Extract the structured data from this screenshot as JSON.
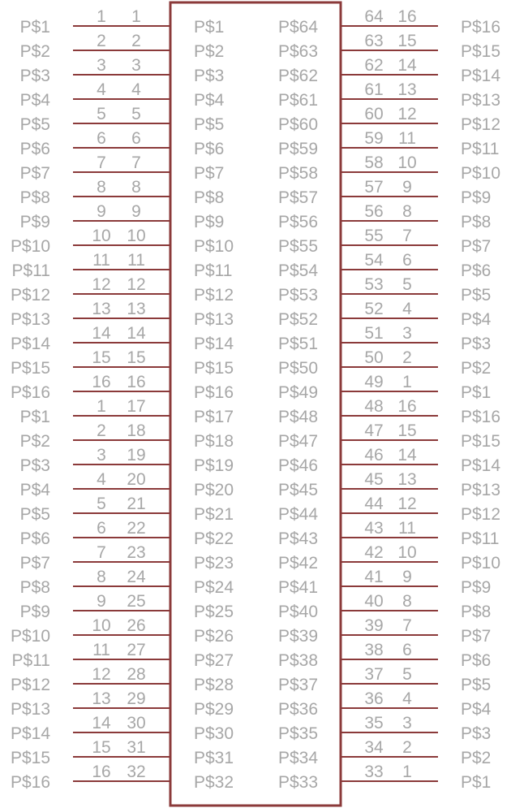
{
  "component": {
    "stroke_color": "#8b3a3a",
    "text_color": "#a7a7a7",
    "background": "#ffffff"
  },
  "left_pins": [
    {
      "signal": "P$1",
      "num_a": "1",
      "num_b": "1",
      "inner": "P$1"
    },
    {
      "signal": "P$2",
      "num_a": "2",
      "num_b": "2",
      "inner": "P$2"
    },
    {
      "signal": "P$3",
      "num_a": "3",
      "num_b": "3",
      "inner": "P$3"
    },
    {
      "signal": "P$4",
      "num_a": "4",
      "num_b": "4",
      "inner": "P$4"
    },
    {
      "signal": "P$5",
      "num_a": "5",
      "num_b": "5",
      "inner": "P$5"
    },
    {
      "signal": "P$6",
      "num_a": "6",
      "num_b": "6",
      "inner": "P$6"
    },
    {
      "signal": "P$7",
      "num_a": "7",
      "num_b": "7",
      "inner": "P$7"
    },
    {
      "signal": "P$8",
      "num_a": "8",
      "num_b": "8",
      "inner": "P$8"
    },
    {
      "signal": "P$9",
      "num_a": "9",
      "num_b": "9",
      "inner": "P$9"
    },
    {
      "signal": "P$10",
      "num_a": "10",
      "num_b": "10",
      "inner": "P$10"
    },
    {
      "signal": "P$11",
      "num_a": "11",
      "num_b": "11",
      "inner": "P$11"
    },
    {
      "signal": "P$12",
      "num_a": "12",
      "num_b": "12",
      "inner": "P$12"
    },
    {
      "signal": "P$13",
      "num_a": "13",
      "num_b": "13",
      "inner": "P$13"
    },
    {
      "signal": "P$14",
      "num_a": "14",
      "num_b": "14",
      "inner": "P$14"
    },
    {
      "signal": "P$15",
      "num_a": "15",
      "num_b": "15",
      "inner": "P$15"
    },
    {
      "signal": "P$16",
      "num_a": "16",
      "num_b": "16",
      "inner": "P$16"
    },
    {
      "signal": "P$1",
      "num_a": "1",
      "num_b": "17",
      "inner": "P$17"
    },
    {
      "signal": "P$2",
      "num_a": "2",
      "num_b": "18",
      "inner": "P$18"
    },
    {
      "signal": "P$3",
      "num_a": "3",
      "num_b": "19",
      "inner": "P$19"
    },
    {
      "signal": "P$4",
      "num_a": "4",
      "num_b": "20",
      "inner": "P$20"
    },
    {
      "signal": "P$5",
      "num_a": "5",
      "num_b": "21",
      "inner": "P$21"
    },
    {
      "signal": "P$6",
      "num_a": "6",
      "num_b": "22",
      "inner": "P$22"
    },
    {
      "signal": "P$7",
      "num_a": "7",
      "num_b": "23",
      "inner": "P$23"
    },
    {
      "signal": "P$8",
      "num_a": "8",
      "num_b": "24",
      "inner": "P$24"
    },
    {
      "signal": "P$9",
      "num_a": "9",
      "num_b": "25",
      "inner": "P$25"
    },
    {
      "signal": "P$10",
      "num_a": "10",
      "num_b": "26",
      "inner": "P$26"
    },
    {
      "signal": "P$11",
      "num_a": "11",
      "num_b": "27",
      "inner": "P$27"
    },
    {
      "signal": "P$12",
      "num_a": "12",
      "num_b": "28",
      "inner": "P$28"
    },
    {
      "signal": "P$13",
      "num_a": "13",
      "num_b": "29",
      "inner": "P$29"
    },
    {
      "signal": "P$14",
      "num_a": "14",
      "num_b": "30",
      "inner": "P$30"
    },
    {
      "signal": "P$15",
      "num_a": "15",
      "num_b": "31",
      "inner": "P$31"
    },
    {
      "signal": "P$16",
      "num_a": "16",
      "num_b": "32",
      "inner": "P$32"
    }
  ],
  "right_pins": [
    {
      "inner": "P$64",
      "num_a": "64",
      "num_b": "16",
      "signal": "P$16"
    },
    {
      "inner": "P$63",
      "num_a": "63",
      "num_b": "15",
      "signal": "P$15"
    },
    {
      "inner": "P$62",
      "num_a": "62",
      "num_b": "14",
      "signal": "P$14"
    },
    {
      "inner": "P$61",
      "num_a": "61",
      "num_b": "13",
      "signal": "P$13"
    },
    {
      "inner": "P$60",
      "num_a": "60",
      "num_b": "12",
      "signal": "P$12"
    },
    {
      "inner": "P$59",
      "num_a": "59",
      "num_b": "11",
      "signal": "P$11"
    },
    {
      "inner": "P$58",
      "num_a": "58",
      "num_b": "10",
      "signal": "P$10"
    },
    {
      "inner": "P$57",
      "num_a": "57",
      "num_b": "9",
      "signal": "P$9"
    },
    {
      "inner": "P$56",
      "num_a": "56",
      "num_b": "8",
      "signal": "P$8"
    },
    {
      "inner": "P$55",
      "num_a": "55",
      "num_b": "7",
      "signal": "P$7"
    },
    {
      "inner": "P$54",
      "num_a": "54",
      "num_b": "6",
      "signal": "P$6"
    },
    {
      "inner": "P$53",
      "num_a": "53",
      "num_b": "5",
      "signal": "P$5"
    },
    {
      "inner": "P$52",
      "num_a": "52",
      "num_b": "4",
      "signal": "P$4"
    },
    {
      "inner": "P$51",
      "num_a": "51",
      "num_b": "3",
      "signal": "P$3"
    },
    {
      "inner": "P$50",
      "num_a": "50",
      "num_b": "2",
      "signal": "P$2"
    },
    {
      "inner": "P$49",
      "num_a": "49",
      "num_b": "1",
      "signal": "P$1"
    },
    {
      "inner": "P$48",
      "num_a": "48",
      "num_b": "16",
      "signal": "P$16"
    },
    {
      "inner": "P$47",
      "num_a": "47",
      "num_b": "15",
      "signal": "P$15"
    },
    {
      "inner": "P$46",
      "num_a": "46",
      "num_b": "14",
      "signal": "P$14"
    },
    {
      "inner": "P$45",
      "num_a": "45",
      "num_b": "13",
      "signal": "P$13"
    },
    {
      "inner": "P$44",
      "num_a": "44",
      "num_b": "12",
      "signal": "P$12"
    },
    {
      "inner": "P$43",
      "num_a": "43",
      "num_b": "11",
      "signal": "P$11"
    },
    {
      "inner": "P$42",
      "num_a": "42",
      "num_b": "10",
      "signal": "P$10"
    },
    {
      "inner": "P$41",
      "num_a": "41",
      "num_b": "9",
      "signal": "P$9"
    },
    {
      "inner": "P$40",
      "num_a": "40",
      "num_b": "8",
      "signal": "P$8"
    },
    {
      "inner": "P$39",
      "num_a": "39",
      "num_b": "7",
      "signal": "P$7"
    },
    {
      "inner": "P$38",
      "num_a": "38",
      "num_b": "6",
      "signal": "P$6"
    },
    {
      "inner": "P$37",
      "num_a": "37",
      "num_b": "5",
      "signal": "P$5"
    },
    {
      "inner": "P$36",
      "num_a": "36",
      "num_b": "4",
      "signal": "P$4"
    },
    {
      "inner": "P$35",
      "num_a": "35",
      "num_b": "3",
      "signal": "P$3"
    },
    {
      "inner": "P$34",
      "num_a": "34",
      "num_b": "2",
      "signal": "P$2"
    },
    {
      "inner": "P$33",
      "num_a": "33",
      "num_b": "1",
      "signal": "P$1"
    }
  ]
}
